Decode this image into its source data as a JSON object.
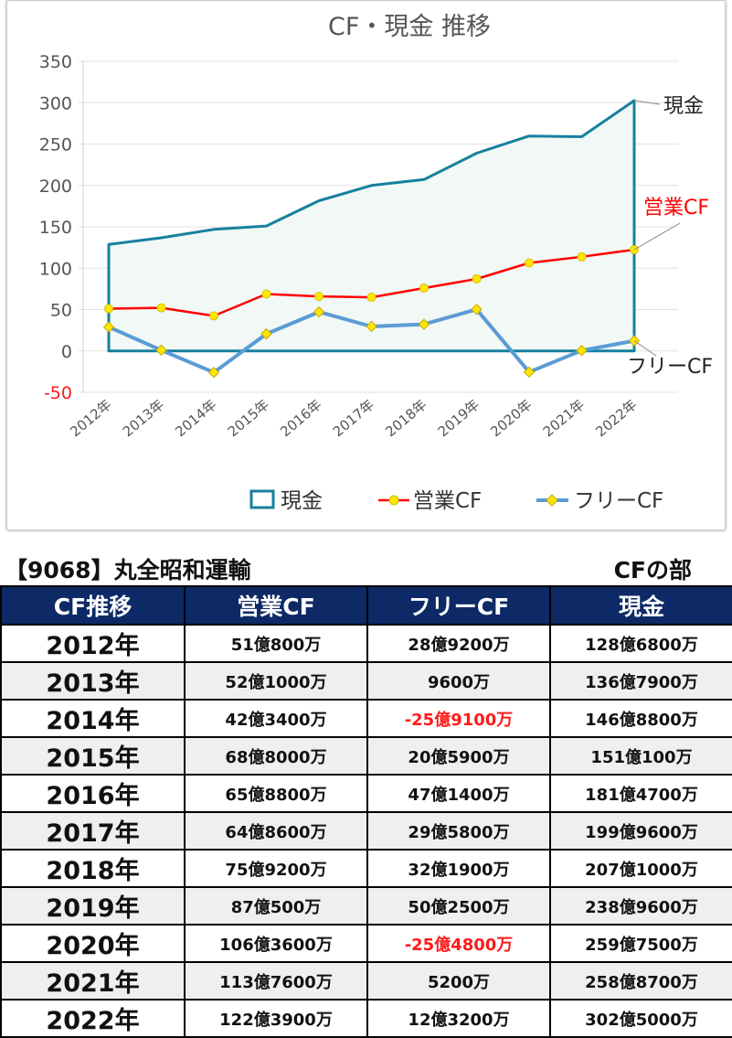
{
  "chart_data": {
    "type": "line",
    "title": "CF・現金 推移",
    "categories": [
      "2012年",
      "2013年",
      "2014年",
      "2015年",
      "2016年",
      "2017年",
      "2018年",
      "2019年",
      "2020年",
      "2021年",
      "2022年"
    ],
    "ylim": [
      -50,
      350
    ],
    "yticks": [
      350,
      300,
      250,
      200,
      150,
      100,
      50,
      0,
      -50
    ],
    "grid": "horizontal",
    "legend_position": "bottom",
    "series": [
      {
        "name": "現金",
        "style": "area",
        "color": "#17809f",
        "fill": "#f1f8f5",
        "end_label": "現金",
        "end_label_color": "#222222",
        "values": [
          128.68,
          136.79,
          146.88,
          151.01,
          181.47,
          199.96,
          207.1,
          238.96,
          259.75,
          258.87,
          302.5
        ]
      },
      {
        "name": "営業CF",
        "style": "line",
        "color": "#ff0000",
        "marker": "circle",
        "marker_color": "#ffe600",
        "end_label": "営業CF",
        "end_label_color": "#ff0000",
        "values": [
          51.08,
          52.1,
          42.34,
          68.8,
          65.88,
          64.86,
          75.92,
          87.05,
          106.36,
          113.76,
          122.39
        ]
      },
      {
        "name": "フリーCF",
        "style": "line",
        "color": "#5b9bd5",
        "marker": "diamond",
        "marker_color": "#ffe600",
        "end_label": "フリーCF",
        "end_label_color": "#222222",
        "values": [
          28.92,
          0.96,
          -25.91,
          20.59,
          47.14,
          29.58,
          32.19,
          50.25,
          -25.48,
          0.52,
          12.32
        ]
      }
    ]
  },
  "table": {
    "company": "【9068】丸全昭和運輸",
    "section": "CFの部",
    "headers": [
      "CF推移",
      "営業CF",
      "フリーCF",
      "現金"
    ],
    "rows": [
      {
        "year": "2012年",
        "op": "51億800万",
        "free": "28億9200万",
        "cash": "128億6800万"
      },
      {
        "year": "2013年",
        "op": "52億1000万",
        "free": "9600万",
        "cash": "136億7900万"
      },
      {
        "year": "2014年",
        "op": "42億3400万",
        "free": "-25億9100万",
        "cash": "146億8800万"
      },
      {
        "year": "2015年",
        "op": "68億8000万",
        "free": "20億5900万",
        "cash": "151億100万"
      },
      {
        "year": "2016年",
        "op": "65億8800万",
        "free": "47億1400万",
        "cash": "181億4700万"
      },
      {
        "year": "2017年",
        "op": "64億8600万",
        "free": "29億5800万",
        "cash": "199億9600万"
      },
      {
        "year": "2018年",
        "op": "75億9200万",
        "free": "32億1900万",
        "cash": "207億1000万"
      },
      {
        "year": "2019年",
        "op": "87億500万",
        "free": "50億2500万",
        "cash": "238億9600万"
      },
      {
        "year": "2020年",
        "op": "106億3600万",
        "free": "-25億4800万",
        "cash": "259億7500万"
      },
      {
        "year": "2021年",
        "op": "113億7600万",
        "free": "5200万",
        "cash": "258億8700万"
      },
      {
        "year": "2022年",
        "op": "122億3900万",
        "free": "12億3200万",
        "cash": "302億5000万"
      }
    ],
    "negative_color": "#ff1a1a"
  }
}
